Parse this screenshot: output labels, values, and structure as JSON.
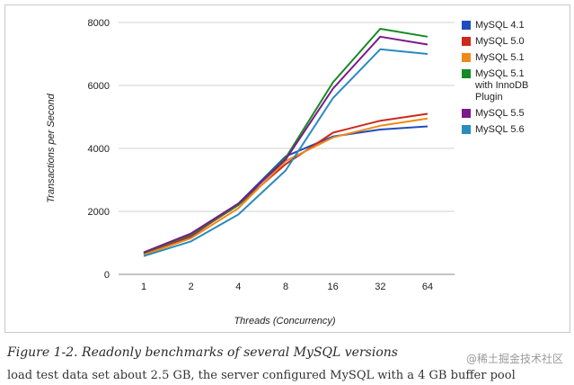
{
  "chart_data": {
    "type": "line",
    "title": "",
    "xlabel": "Threads (Concurrency)",
    "ylabel": "Transactions per Second",
    "categories": [
      "1",
      "2",
      "4",
      "8",
      "16",
      "32",
      "64"
    ],
    "yticks": [
      "0",
      "2000",
      "4000",
      "6000",
      "8000"
    ],
    "ylim": [
      0,
      8000
    ],
    "grid": true,
    "legend_position": "right",
    "series": [
      {
        "name": "MySQL 4.1",
        "label_lines": [
          "MySQL 4.1"
        ],
        "color": "#1f4ebd",
        "values": [
          640,
          1200,
          2250,
          3750,
          4380,
          4600,
          4700
        ]
      },
      {
        "name": "MySQL 5.0",
        "label_lines": [
          "MySQL 5.0"
        ],
        "color": "#cc2a1b",
        "values": [
          660,
          1230,
          2200,
          3500,
          4500,
          4880,
          5100
        ]
      },
      {
        "name": "MySQL 5.1",
        "label_lines": [
          "MySQL 5.1"
        ],
        "color": "#ef8a17",
        "values": [
          620,
          1150,
          2100,
          3600,
          4350,
          4720,
          4950
        ]
      },
      {
        "name": "MySQL 5.1 with InnoDB Plugin",
        "label_lines": [
          "MySQL 5.1",
          "with InnoDB",
          "Plugin"
        ],
        "color": "#178a25",
        "values": [
          680,
          1270,
          2200,
          3700,
          6100,
          7800,
          7550
        ]
      },
      {
        "name": "MySQL 5.5",
        "label_lines": [
          "MySQL 5.5"
        ],
        "color": "#7a1a8a",
        "values": [
          700,
          1300,
          2250,
          3650,
          5900,
          7550,
          7300
        ]
      },
      {
        "name": "MySQL 5.6",
        "label_lines": [
          "MySQL 5.6"
        ],
        "color": "#2a8bbf",
        "values": [
          580,
          1050,
          1900,
          3300,
          5600,
          7150,
          7000
        ]
      }
    ]
  },
  "caption": "Figure 1-2. Readonly benchmarks of several MySQL versions",
  "cutoff_text": "load test data set about 2.5 GB, the server configured MySQL with a 4 GB buffer pool",
  "watermark": "@稀土掘金技术社区"
}
